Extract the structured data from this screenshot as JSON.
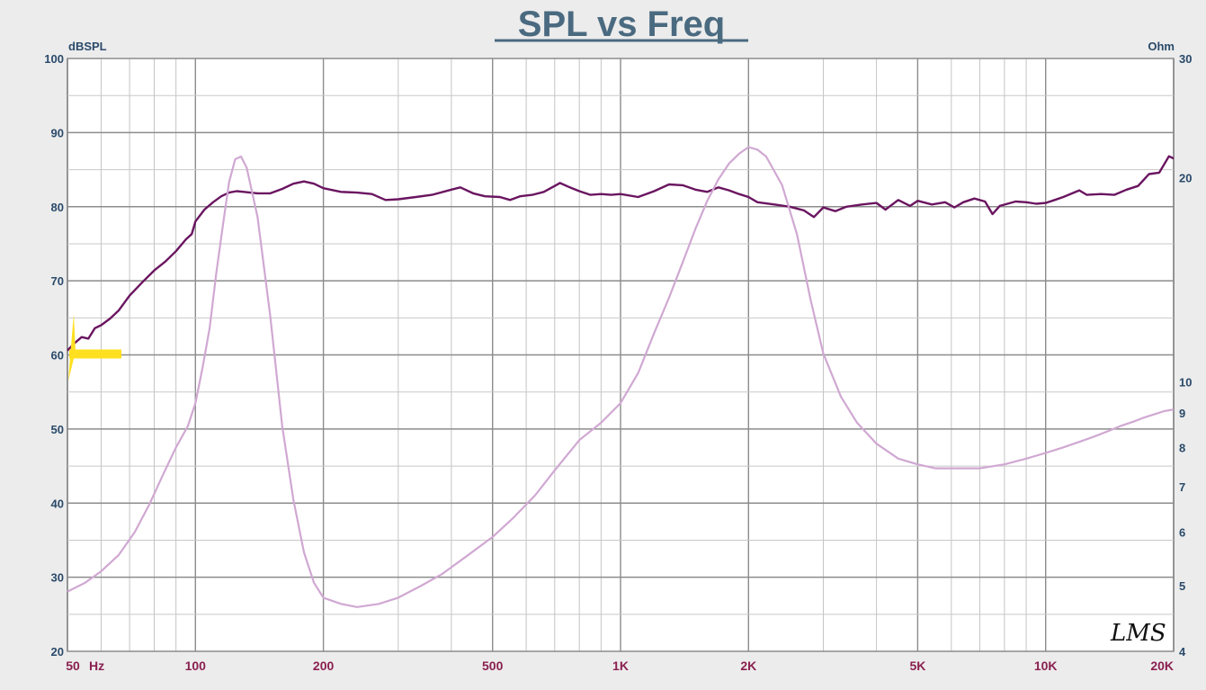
{
  "chart_data": {
    "type": "line",
    "title": "SPL vs Freq",
    "y_left_label": "dBSPL",
    "y_right_label": "Ohm",
    "x_scale": "log",
    "xlim": [
      50,
      20000
    ],
    "ylim_left": [
      20,
      100
    ],
    "ylim_right": [
      4,
      30
    ],
    "y_right_scale": "log",
    "grid": true,
    "x_ticks": [
      {
        "v": 50,
        "label": "50"
      },
      {
        "v": 100,
        "label": "100"
      },
      {
        "v": 200,
        "label": "200"
      },
      {
        "v": 500,
        "label": "500"
      },
      {
        "v": 1000,
        "label": "1K"
      },
      {
        "v": 2000,
        "label": "2K"
      },
      {
        "v": 5000,
        "label": "5K"
      },
      {
        "v": 10000,
        "label": "10K"
      },
      {
        "v": 20000,
        "label": "20K"
      }
    ],
    "x_unit_label": "Hz",
    "y_left_ticks": [
      {
        "v": 20,
        "label": "20"
      },
      {
        "v": 30,
        "label": "30"
      },
      {
        "v": 40,
        "label": "40"
      },
      {
        "v": 50,
        "label": "50"
      },
      {
        "v": 60,
        "label": "60"
      },
      {
        "v": 70,
        "label": "70"
      },
      {
        "v": 80,
        "label": "80"
      },
      {
        "v": 90,
        "label": "90"
      },
      {
        "v": 100,
        "label": "100"
      }
    ],
    "y_right_ticks": [
      {
        "v": 4,
        "label": "4"
      },
      {
        "v": 5,
        "label": "5"
      },
      {
        "v": 6,
        "label": "6"
      },
      {
        "v": 7,
        "label": "7"
      },
      {
        "v": 8,
        "label": "8"
      },
      {
        "v": 9,
        "label": "9"
      },
      {
        "v": 10,
        "label": "10"
      },
      {
        "v": 20,
        "label": "20"
      },
      {
        "v": 30,
        "label": "30"
      }
    ],
    "series": [
      {
        "axis": "left",
        "color": "#6a1560",
        "points": [
          [
            50,
            60.6
          ],
          [
            52,
            61.6
          ],
          [
            54,
            62.4
          ],
          [
            56,
            62.2
          ],
          [
            58,
            63.6
          ],
          [
            60,
            64.0
          ],
          [
            63,
            64.9
          ],
          [
            66,
            66.0
          ],
          [
            70,
            68.0
          ],
          [
            75,
            69.8
          ],
          [
            80,
            71.4
          ],
          [
            85,
            72.6
          ],
          [
            90,
            74.0
          ],
          [
            95,
            75.6
          ],
          [
            98,
            76.3
          ],
          [
            100,
            78.0
          ],
          [
            105,
            79.6
          ],
          [
            110,
            80.6
          ],
          [
            115,
            81.4
          ],
          [
            120,
            81.9
          ],
          [
            125,
            82.1
          ],
          [
            130,
            82.0
          ],
          [
            140,
            81.8
          ],
          [
            150,
            81.8
          ],
          [
            160,
            82.4
          ],
          [
            170,
            83.1
          ],
          [
            180,
            83.4
          ],
          [
            190,
            83.1
          ],
          [
            200,
            82.5
          ],
          [
            220,
            82.0
          ],
          [
            240,
            81.9
          ],
          [
            260,
            81.7
          ],
          [
            280,
            80.9
          ],
          [
            300,
            81.0
          ],
          [
            330,
            81.3
          ],
          [
            360,
            81.6
          ],
          [
            400,
            82.3
          ],
          [
            420,
            82.6
          ],
          [
            450,
            81.8
          ],
          [
            480,
            81.4
          ],
          [
            520,
            81.3
          ],
          [
            550,
            80.9
          ],
          [
            580,
            81.4
          ],
          [
            620,
            81.6
          ],
          [
            660,
            82.0
          ],
          [
            700,
            82.8
          ],
          [
            720,
            83.2
          ],
          [
            760,
            82.6
          ],
          [
            800,
            82.1
          ],
          [
            850,
            81.6
          ],
          [
            900,
            81.7
          ],
          [
            950,
            81.6
          ],
          [
            1000,
            81.7
          ],
          [
            1100,
            81.3
          ],
          [
            1200,
            82.1
          ],
          [
            1300,
            83.0
          ],
          [
            1400,
            82.9
          ],
          [
            1500,
            82.3
          ],
          [
            1600,
            82.0
          ],
          [
            1700,
            82.6
          ],
          [
            1800,
            82.2
          ],
          [
            1900,
            81.7
          ],
          [
            2000,
            81.3
          ],
          [
            2100,
            80.6
          ],
          [
            2300,
            80.3
          ],
          [
            2500,
            80.0
          ],
          [
            2700,
            79.5
          ],
          [
            2850,
            78.6
          ],
          [
            3000,
            79.9
          ],
          [
            3200,
            79.4
          ],
          [
            3400,
            80.0
          ],
          [
            3700,
            80.3
          ],
          [
            4000,
            80.5
          ],
          [
            4200,
            79.6
          ],
          [
            4500,
            80.9
          ],
          [
            4800,
            80.1
          ],
          [
            5000,
            80.8
          ],
          [
            5400,
            80.3
          ],
          [
            5800,
            80.6
          ],
          [
            6100,
            79.9
          ],
          [
            6400,
            80.6
          ],
          [
            6800,
            81.1
          ],
          [
            7200,
            80.7
          ],
          [
            7500,
            79.0
          ],
          [
            7800,
            80.1
          ],
          [
            8500,
            80.7
          ],
          [
            9000,
            80.6
          ],
          [
            9500,
            80.4
          ],
          [
            10000,
            80.5
          ],
          [
            10500,
            80.9
          ],
          [
            11000,
            81.3
          ],
          [
            12000,
            82.2
          ],
          [
            12500,
            81.6
          ],
          [
            13500,
            81.7
          ],
          [
            14500,
            81.6
          ],
          [
            15500,
            82.3
          ],
          [
            16500,
            82.8
          ],
          [
            17500,
            84.4
          ],
          [
            18500,
            84.6
          ],
          [
            19500,
            86.8
          ],
          [
            20000,
            86.5
          ]
        ]
      },
      {
        "axis": "right",
        "color": "#d0a8d2",
        "points": [
          [
            50,
            4.9
          ],
          [
            55,
            5.05
          ],
          [
            60,
            5.25
          ],
          [
            66,
            5.55
          ],
          [
            72,
            6.0
          ],
          [
            78,
            6.6
          ],
          [
            84,
            7.3
          ],
          [
            90,
            8.0
          ],
          [
            96,
            8.6
          ],
          [
            100,
            9.3
          ],
          [
            104,
            10.5
          ],
          [
            108,
            12.0
          ],
          [
            112,
            14.5
          ],
          [
            116,
            17.0
          ],
          [
            120,
            19.7
          ],
          [
            124,
            21.3
          ],
          [
            128,
            21.5
          ],
          [
            132,
            20.7
          ],
          [
            140,
            17.5
          ],
          [
            150,
            12.5
          ],
          [
            160,
            8.6
          ],
          [
            170,
            6.7
          ],
          [
            180,
            5.6
          ],
          [
            190,
            5.05
          ],
          [
            200,
            4.8
          ],
          [
            220,
            4.7
          ],
          [
            240,
            4.65
          ],
          [
            270,
            4.7
          ],
          [
            300,
            4.8
          ],
          [
            340,
            5.0
          ],
          [
            380,
            5.2
          ],
          [
            430,
            5.5
          ],
          [
            500,
            5.9
          ],
          [
            560,
            6.3
          ],
          [
            630,
            6.8
          ],
          [
            700,
            7.4
          ],
          [
            800,
            8.2
          ],
          [
            900,
            8.7
          ],
          [
            1000,
            9.3
          ],
          [
            1100,
            10.3
          ],
          [
            1200,
            11.8
          ],
          [
            1300,
            13.3
          ],
          [
            1400,
            15.0
          ],
          [
            1500,
            16.8
          ],
          [
            1600,
            18.5
          ],
          [
            1700,
            19.9
          ],
          [
            1800,
            21.0
          ],
          [
            1900,
            21.7
          ],
          [
            2000,
            22.2
          ],
          [
            2100,
            22.0
          ],
          [
            2200,
            21.5
          ],
          [
            2400,
            19.5
          ],
          [
            2600,
            16.5
          ],
          [
            2800,
            13.2
          ],
          [
            3000,
            11.0
          ],
          [
            3300,
            9.5
          ],
          [
            3600,
            8.7
          ],
          [
            4000,
            8.1
          ],
          [
            4500,
            7.7
          ],
          [
            5000,
            7.55
          ],
          [
            5500,
            7.45
          ],
          [
            6000,
            7.45
          ],
          [
            7000,
            7.45
          ],
          [
            8000,
            7.55
          ],
          [
            9000,
            7.7
          ],
          [
            10000,
            7.85
          ],
          [
            11000,
            8.0
          ],
          [
            12000,
            8.15
          ],
          [
            13000,
            8.3
          ],
          [
            14000,
            8.45
          ],
          [
            15000,
            8.6
          ],
          [
            16000,
            8.72
          ],
          [
            17000,
            8.85
          ],
          [
            18000,
            8.95
          ],
          [
            19000,
            9.05
          ],
          [
            20000,
            9.1
          ]
        ]
      }
    ],
    "marker_color": "#ffe020"
  },
  "logo_text": "LMS"
}
